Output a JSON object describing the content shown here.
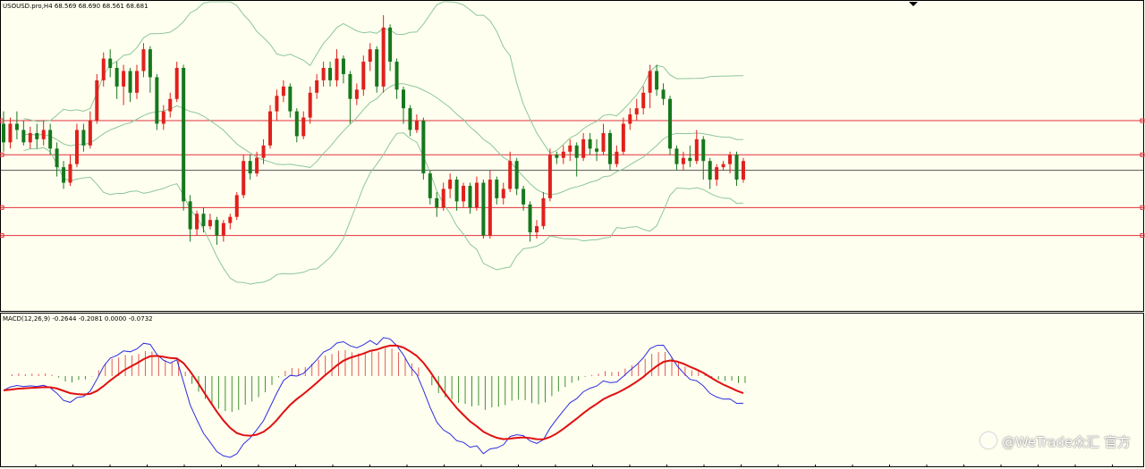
{
  "chart_header": {
    "symbol_label": "USOUSD.pro,H4  68.569 68.690 68.561 68.681"
  },
  "macd_header": {
    "label": "MACD(12,26,9) -0.2644 -0.2081 0.0000 -0.0732"
  },
  "watermark": {
    "text": "@WeTrade众汇 官方"
  },
  "colors": {
    "background": "#fffff0",
    "bull_candle": "#e0201b",
    "bear_candle": "#16781d",
    "bollinger": "#8cc79a",
    "level_line": "#e0303a",
    "current_price_line": "#555555",
    "macd_positive_bar": "#e05a5a",
    "macd_negative_bar": "#3f8f33",
    "macd_line": "#2d2de0",
    "signal_line": "#e01010"
  },
  "chart_data": [
    {
      "type": "candlestick",
      "title": "USOUSD.pro,H4",
      "ohlc_header": {
        "open": 68.569,
        "high": 68.69,
        "low": 68.561,
        "close": 68.681
      },
      "price_range": [
        64.0,
        73.5
      ],
      "horizontal_levels": [
        69.9,
        68.8,
        67.1,
        66.2
      ],
      "current_price": 68.3,
      "candles": [
        [
          69.8,
          69.2,
          70.2,
          68.9
        ],
        [
          69.2,
          69.8,
          70.0,
          69.0
        ],
        [
          69.8,
          69.6,
          70.2,
          69.3
        ],
        [
          69.6,
          69.2,
          69.9,
          69.1
        ],
        [
          69.2,
          69.5,
          69.7,
          69.0
        ],
        [
          69.5,
          69.3,
          69.8,
          69.0
        ],
        [
          69.3,
          69.6,
          69.9,
          69.1
        ],
        [
          69.6,
          69.0,
          69.8,
          68.8
        ],
        [
          69.0,
          68.4,
          69.2,
          68.1
        ],
        [
          68.4,
          67.9,
          68.6,
          67.7
        ],
        [
          67.9,
          68.5,
          68.8,
          67.8
        ],
        [
          68.5,
          69.6,
          69.8,
          68.4
        ],
        [
          69.6,
          69.1,
          69.8,
          68.9
        ],
        [
          69.1,
          69.9,
          70.2,
          69.0
        ],
        [
          69.9,
          71.2,
          71.4,
          69.8
        ],
        [
          71.2,
          71.9,
          72.1,
          71.0
        ],
        [
          71.9,
          71.6,
          72.2,
          71.3
        ],
        [
          71.6,
          71.0,
          71.8,
          70.6
        ],
        [
          71.0,
          71.5,
          71.7,
          70.4
        ],
        [
          71.5,
          70.8,
          71.6,
          70.5
        ],
        [
          70.8,
          71.5,
          71.7,
          70.6
        ],
        [
          71.5,
          72.2,
          72.4,
          71.3
        ],
        [
          72.2,
          71.3,
          72.3,
          70.8
        ],
        [
          71.3,
          69.8,
          71.4,
          69.6
        ],
        [
          69.8,
          70.2,
          70.4,
          69.6
        ],
        [
          70.2,
          70.6,
          70.8,
          70.0
        ],
        [
          70.6,
          71.6,
          71.8,
          70.5
        ],
        [
          71.6,
          67.3,
          71.7,
          67.0
        ],
        [
          67.3,
          66.4,
          67.5,
          66.0
        ],
        [
          66.4,
          66.9,
          67.0,
          66.2
        ],
        [
          66.9,
          66.5,
          67.1,
          66.3
        ],
        [
          66.5,
          66.7,
          66.9,
          66.4
        ],
        [
          66.7,
          66.2,
          66.8,
          65.9
        ],
        [
          66.2,
          66.6,
          66.7,
          66.0
        ],
        [
          66.6,
          66.8,
          66.9,
          66.4
        ],
        [
          66.8,
          67.5,
          67.6,
          66.7
        ],
        [
          67.5,
          68.6,
          68.8,
          67.4
        ],
        [
          68.6,
          68.2,
          68.8,
          68.0
        ],
        [
          68.2,
          68.7,
          68.9,
          68.1
        ],
        [
          68.7,
          69.1,
          69.3,
          68.5
        ],
        [
          69.1,
          70.2,
          70.4,
          69.0
        ],
        [
          70.2,
          70.7,
          70.9,
          69.9
        ],
        [
          70.7,
          71.0,
          71.2,
          70.5
        ],
        [
          71.0,
          70.2,
          71.1,
          70.0
        ],
        [
          70.2,
          69.4,
          70.3,
          69.2
        ],
        [
          69.4,
          70.0,
          70.2,
          69.3
        ],
        [
          70.0,
          70.8,
          71.0,
          69.8
        ],
        [
          70.8,
          71.2,
          71.4,
          70.6
        ],
        [
          71.2,
          71.6,
          71.8,
          71.0
        ],
        [
          71.6,
          71.2,
          71.8,
          71.0
        ],
        [
          71.2,
          71.9,
          72.2,
          71.0
        ],
        [
          71.9,
          71.4,
          72.0,
          71.1
        ],
        [
          71.4,
          70.6,
          71.5,
          69.8
        ],
        [
          70.6,
          70.9,
          71.1,
          70.4
        ],
        [
          70.9,
          71.8,
          72.0,
          70.7
        ],
        [
          71.8,
          72.2,
          72.4,
          71.5
        ],
        [
          72.2,
          71.0,
          72.3,
          70.8
        ],
        [
          71.0,
          72.9,
          73.3,
          70.8
        ],
        [
          72.9,
          71.8,
          73.0,
          71.5
        ],
        [
          71.8,
          70.9,
          71.9,
          70.6
        ],
        [
          70.9,
          70.3,
          71.0,
          69.8
        ],
        [
          70.3,
          69.6,
          70.4,
          69.4
        ],
        [
          69.6,
          69.9,
          70.1,
          69.5
        ],
        [
          69.9,
          68.2,
          70.0,
          68.0
        ],
        [
          68.2,
          67.4,
          68.3,
          67.2
        ],
        [
          67.4,
          67.1,
          67.6,
          66.8
        ],
        [
          67.1,
          67.7,
          67.9,
          67.0
        ],
        [
          67.7,
          68.0,
          68.2,
          67.4
        ],
        [
          68.0,
          67.3,
          68.1,
          67.0
        ],
        [
          67.3,
          67.8,
          67.9,
          67.1
        ],
        [
          67.8,
          67.1,
          67.9,
          66.9
        ],
        [
          67.1,
          67.9,
          68.1,
          67.0
        ],
        [
          67.9,
          66.2,
          68.0,
          66.1
        ],
        [
          66.2,
          68.0,
          68.3,
          66.1
        ],
        [
          68.0,
          67.4,
          68.1,
          67.2
        ],
        [
          67.4,
          67.7,
          67.9,
          67.2
        ],
        [
          67.7,
          68.6,
          68.9,
          67.6
        ],
        [
          68.6,
          67.7,
          68.7,
          67.5
        ],
        [
          67.7,
          67.2,
          67.8,
          67.0
        ],
        [
          67.2,
          66.3,
          67.3,
          66.0
        ],
        [
          66.3,
          66.5,
          66.7,
          66.1
        ],
        [
          66.5,
          67.4,
          67.6,
          66.4
        ],
        [
          67.4,
          68.8,
          69.0,
          67.3
        ],
        [
          68.8,
          68.7,
          68.9,
          68.5
        ],
        [
          68.7,
          68.9,
          69.1,
          68.5
        ],
        [
          68.9,
          69.1,
          69.3,
          68.6
        ],
        [
          69.1,
          68.7,
          69.2,
          68.1
        ],
        [
          68.7,
          69.3,
          69.5,
          68.6
        ],
        [
          69.3,
          69.0,
          69.5,
          68.8
        ],
        [
          69.0,
          68.9,
          69.3,
          68.6
        ],
        [
          68.9,
          69.5,
          69.8,
          68.8
        ],
        [
          69.5,
          68.5,
          69.6,
          68.3
        ],
        [
          68.5,
          68.9,
          69.1,
          68.4
        ],
        [
          68.9,
          69.8,
          70.0,
          68.8
        ],
        [
          69.8,
          70.1,
          70.3,
          69.6
        ],
        [
          70.1,
          70.3,
          70.6,
          69.9
        ],
        [
          70.3,
          70.8,
          71.0,
          70.1
        ],
        [
          70.8,
          71.5,
          71.7,
          70.3
        ],
        [
          71.5,
          70.9,
          71.7,
          70.7
        ],
        [
          70.9,
          70.6,
          71.1,
          70.4
        ],
        [
          70.6,
          69.0,
          70.7,
          68.8
        ],
        [
          69.0,
          68.5,
          69.1,
          68.3
        ],
        [
          68.5,
          68.7,
          68.9,
          68.3
        ],
        [
          68.7,
          68.6,
          69.1,
          68.4
        ],
        [
          68.6,
          69.3,
          69.6,
          68.5
        ],
        [
          69.3,
          68.6,
          69.4,
          68.0
        ],
        [
          68.6,
          68.0,
          68.7,
          67.7
        ],
        [
          68.0,
          68.4,
          68.5,
          67.8
        ],
        [
          68.4,
          68.5,
          68.6,
          68.3
        ],
        [
          68.5,
          68.8,
          68.9,
          68.2
        ],
        [
          68.8,
          68.0,
          68.9,
          67.8
        ],
        [
          68.0,
          68.6,
          68.7,
          67.9
        ]
      ],
      "bollinger_bands": "20-period envelope drawn around price"
    },
    {
      "type": "macd",
      "title": "MACD(12,26,9)",
      "values": {
        "main": -0.2644,
        "signal": -0.2081,
        "level": 0.0,
        "histogram": -0.0732
      },
      "histogram_shape": "alternating positive and negative clusters",
      "macd_line_shape": "oscillating blue line",
      "signal_line_shape": "smoother red line lagging the MACD line"
    }
  ]
}
